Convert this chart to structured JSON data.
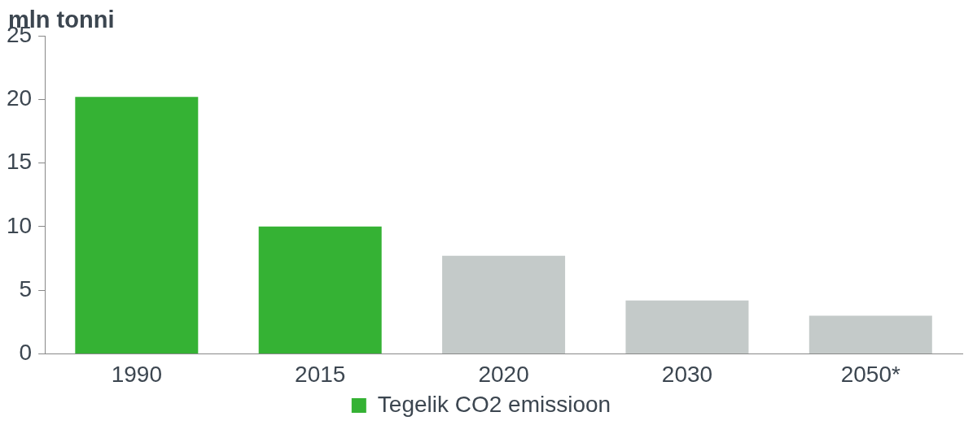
{
  "chart_data": {
    "type": "bar",
    "ylabel": "mln tonni",
    "categories": [
      "1990",
      "2015",
      "2020",
      "2030",
      "2050*"
    ],
    "series": [
      {
        "name": "Tegelik CO2 emissioon",
        "color": "#35b234",
        "colors": [
          "#35b234",
          "#35b234",
          "#c4cac9",
          "#c4cac9",
          "#c4cac9"
        ],
        "values": [
          20.2,
          10.0,
          7.7,
          4.2,
          3.0
        ]
      }
    ],
    "ylim": [
      0,
      25
    ],
    "yticks": [
      0,
      5,
      10,
      15,
      20,
      25
    ],
    "grid": false,
    "legend": "bottom"
  }
}
